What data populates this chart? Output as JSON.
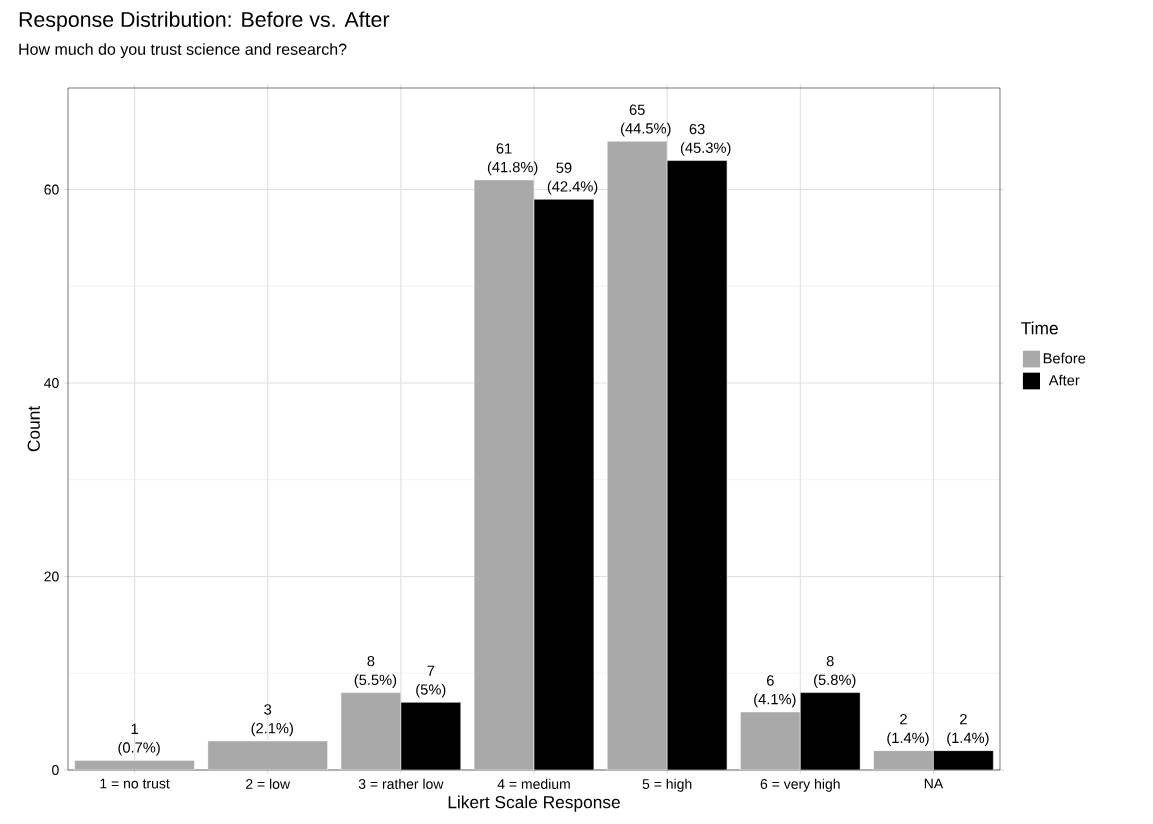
{
  "chart_data": {
    "type": "bar",
    "title": "Response Distribution: Before vs. After",
    "subtitle": "How much do you trust science and research?",
    "xlabel": "Likert Scale Response",
    "ylabel": "Count",
    "legend_title": "Time",
    "categories": [
      "1 = no trust",
      "2 = low",
      "3 = rather low",
      "4 = medium",
      "5 = high",
      "6 = very high",
      "NA"
    ],
    "series": [
      {
        "name": "Before",
        "color": "#a9a9a9",
        "values": [
          1,
          3,
          8,
          61,
          65,
          6,
          2
        ],
        "value_labels": [
          "1 (0.7%)",
          "3 (2.1%)",
          "8 (5.5%)",
          "61 (41.8%)",
          "65 (44.5%)",
          "6 (4.1%)",
          "2 (1.4%)"
        ]
      },
      {
        "name": "After",
        "color": "#000000",
        "values": [
          null,
          null,
          7,
          59,
          63,
          8,
          2
        ],
        "value_labels": [
          null,
          null,
          "7 (5%)",
          "59 (42.4%)",
          "63 (45.3%)",
          "8 (5.8%)",
          "2 (1.4%)"
        ]
      }
    ],
    "ylim": [
      0,
      70.5
    ],
    "yticks": [
      0,
      20,
      40,
      60
    ],
    "grid": true,
    "legend": "right"
  }
}
